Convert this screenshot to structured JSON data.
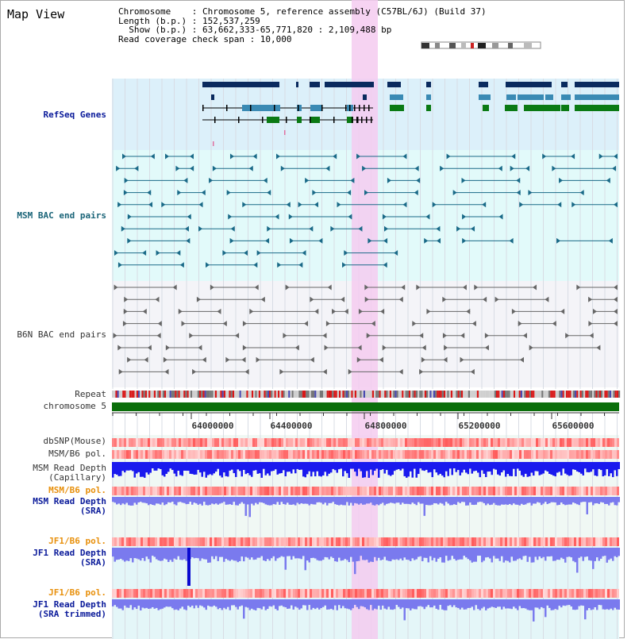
{
  "panel": {
    "title": "Map View"
  },
  "info": {
    "line1": "Chromosome    : Chromosome 5, reference assembly (C57BL/6J) (Build 37)",
    "line2": "Length (b.p.) : 152,537,259",
    "line3": "  Show (b.p.) : 63,662,333-65,771,820 : 2,109,488 bp",
    "line4": "Read coverage check span : 10,000"
  },
  "tracks": {
    "refseq": "RefSeq Genes",
    "msm_bac": "MSM BAC end pairs",
    "b6n_bac": "B6N BAC end pairs",
    "repeat": "Repeat",
    "chromosome": "chromosome 5",
    "dbsnp": "dbSNP(Mouse)",
    "msm_b6_pol_1": "MSM/B6 pol.",
    "msm_depth_cap_1": "MSM Read Depth",
    "msm_depth_cap_2": "(Capillary)",
    "msm_b6_pol_2": "MSM/B6 pol.",
    "msm_depth_sra_1": "MSM Read Depth",
    "msm_depth_sra_2": "(SRA)",
    "jf1_b6_pol_1": "JF1/B6 pol.",
    "jf1_depth_sra_1": "JF1 Read Depth",
    "jf1_depth_sra_2": "(SRA)",
    "jf1_b6_pol_2": "JF1/B6 pol.",
    "jf1_depth_trim_1": "JF1 Read Depth",
    "jf1_depth_trim_2": "(SRA trimmed)"
  },
  "axis": {
    "ticks": [
      "64000000",
      "64400000",
      "64800000",
      "65200000",
      "65600000"
    ]
  },
  "colors": {
    "highlight": "#f4cbf0",
    "refseq_bg": "#dcf0fa",
    "bac_bg": "#e2fafa",
    "b6n_bg": "#f4f4f8",
    "chromosome_bar": "#0a6e0a",
    "gene_dark": "#0a2a5e",
    "gene_mid": "#3a8ab4",
    "gene_green": "#0a7a14",
    "msm_bac_line": "#1a6a88",
    "b6n_bac_line": "#666666",
    "depth_blue": "#1a1aee",
    "depth_light": "#7a7aee"
  }
}
